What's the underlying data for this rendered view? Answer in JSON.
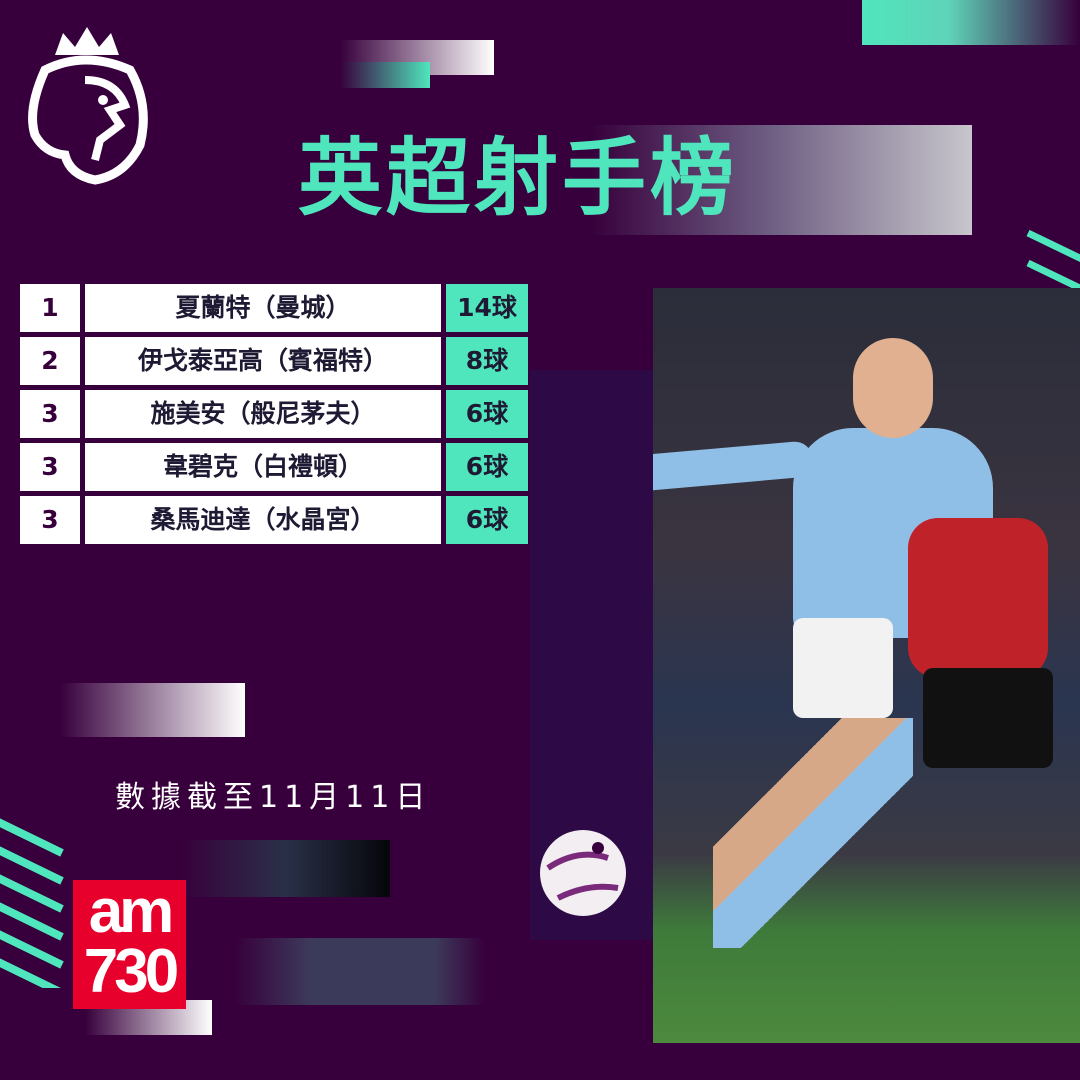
{
  "title": "英超射手榜",
  "scorers": [
    {
      "rank": "1",
      "name": "夏蘭特（曼城）",
      "goals": "14球"
    },
    {
      "rank": "2",
      "name": "伊戈泰亞高（賓福特）",
      "goals": "8球"
    },
    {
      "rank": "3",
      "name": "施美安（般尼茅夫）",
      "goals": "6球"
    },
    {
      "rank": "3",
      "name": "韋碧克（白禮頓）",
      "goals": "6球"
    },
    {
      "rank": "3",
      "name": "桑馬迪達（水晶宮）",
      "goals": "6球"
    }
  ],
  "date_note": "數據截至11月11日",
  "brand_logo": "am730",
  "league_logo": "premier-league-lion",
  "colors": {
    "background": "#37003c",
    "accent": "#4fe6bd",
    "brand_red": "#e8002d"
  }
}
